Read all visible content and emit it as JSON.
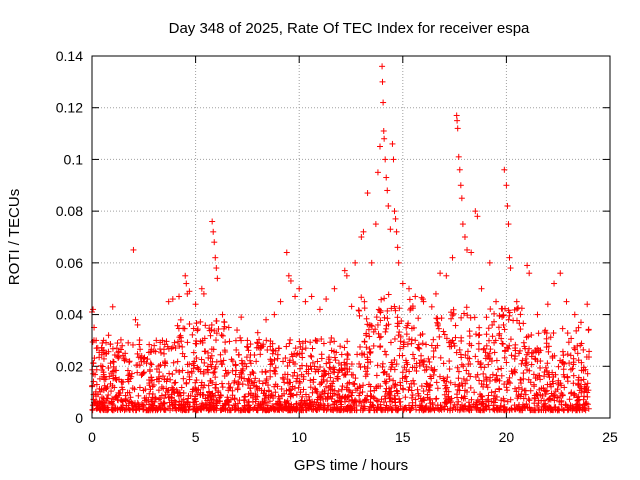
{
  "chart_data": {
    "type": "scatter",
    "title": "Day 348 of 2025, Rate Of TEC Index for receiver espa",
    "xlabel": "GPS time / hours",
    "ylabel": "ROTI / TECUs",
    "xlim": [
      0,
      25
    ],
    "ylim": [
      0,
      0.14
    ],
    "xticks": [
      0,
      5,
      10,
      15,
      20,
      25
    ],
    "xtick_labels": [
      "0",
      "5",
      "10",
      "15",
      "20",
      "25"
    ],
    "yticks": [
      0,
      0.02,
      0.04,
      0.06,
      0.08,
      0.1,
      0.12,
      0.14
    ],
    "ytick_labels": [
      "0",
      "0.02",
      "0.04",
      "0.06",
      "0.08",
      "0.1",
      "0.12",
      "0.14"
    ],
    "grid": true,
    "marker": "+",
    "color": "#ff0000",
    "series": [
      {
        "name": "ROTI",
        "points": [
          [
            0.0,
            0.041
          ],
          [
            0.05,
            0.042
          ],
          [
            0.1,
            0.035
          ],
          [
            0.2,
            0.03
          ],
          [
            0.5,
            0.029
          ],
          [
            0.8,
            0.032
          ],
          [
            1.0,
            0.043
          ],
          [
            1.2,
            0.027
          ],
          [
            1.6,
            0.025
          ],
          [
            2.0,
            0.065
          ],
          [
            2.1,
            0.038
          ],
          [
            2.2,
            0.036
          ],
          [
            2.4,
            0.024
          ],
          [
            3.0,
            0.028
          ],
          [
            3.4,
            0.03
          ],
          [
            3.7,
            0.045
          ],
          [
            3.9,
            0.046
          ],
          [
            4.2,
            0.047
          ],
          [
            4.5,
            0.055
          ],
          [
            4.55,
            0.052
          ],
          [
            4.6,
            0.048
          ],
          [
            4.7,
            0.049
          ],
          [
            5.0,
            0.044
          ],
          [
            5.3,
            0.05
          ],
          [
            5.4,
            0.048
          ],
          [
            5.8,
            0.076
          ],
          [
            5.85,
            0.072
          ],
          [
            5.9,
            0.068
          ],
          [
            5.95,
            0.062
          ],
          [
            6.0,
            0.058
          ],
          [
            6.05,
            0.054
          ],
          [
            6.3,
            0.04
          ],
          [
            6.6,
            0.035
          ],
          [
            7.0,
            0.034
          ],
          [
            7.2,
            0.039
          ],
          [
            7.5,
            0.03
          ],
          [
            8.0,
            0.033
          ],
          [
            8.4,
            0.038
          ],
          [
            8.8,
            0.04
          ],
          [
            9.1,
            0.045
          ],
          [
            9.4,
            0.064
          ],
          [
            9.5,
            0.055
          ],
          [
            9.6,
            0.053
          ],
          [
            9.8,
            0.047
          ],
          [
            10.0,
            0.05
          ],
          [
            10.3,
            0.045
          ],
          [
            10.6,
            0.047
          ],
          [
            11.0,
            0.042
          ],
          [
            11.3,
            0.046
          ],
          [
            11.7,
            0.05
          ],
          [
            12.2,
            0.057
          ],
          [
            12.3,
            0.055
          ],
          [
            12.7,
            0.06
          ],
          [
            13.0,
            0.07
          ],
          [
            13.1,
            0.072
          ],
          [
            13.3,
            0.087
          ],
          [
            13.5,
            0.06
          ],
          [
            13.7,
            0.075
          ],
          [
            13.8,
            0.095
          ],
          [
            13.9,
            0.105
          ],
          [
            14.0,
            0.136
          ],
          [
            14.02,
            0.13
          ],
          [
            14.05,
            0.122
          ],
          [
            14.08,
            0.111
          ],
          [
            14.1,
            0.108
          ],
          [
            14.15,
            0.1
          ],
          [
            14.2,
            0.093
          ],
          [
            14.25,
            0.088
          ],
          [
            14.3,
            0.082
          ],
          [
            14.4,
            0.073
          ],
          [
            14.5,
            0.106
          ],
          [
            14.55,
            0.1
          ],
          [
            14.6,
            0.08
          ],
          [
            14.65,
            0.077
          ],
          [
            14.7,
            0.072
          ],
          [
            14.75,
            0.066
          ],
          [
            14.8,
            0.06
          ],
          [
            15.0,
            0.052
          ],
          [
            15.3,
            0.05
          ],
          [
            15.6,
            0.047
          ],
          [
            16.0,
            0.045
          ],
          [
            16.4,
            0.043
          ],
          [
            16.6,
            0.048
          ],
          [
            16.8,
            0.056
          ],
          [
            17.1,
            0.055
          ],
          [
            17.4,
            0.062
          ],
          [
            17.6,
            0.117
          ],
          [
            17.62,
            0.115
          ],
          [
            17.65,
            0.112
          ],
          [
            17.7,
            0.101
          ],
          [
            17.75,
            0.096
          ],
          [
            17.8,
            0.09
          ],
          [
            17.85,
            0.085
          ],
          [
            17.9,
            0.075
          ],
          [
            18.0,
            0.07
          ],
          [
            18.1,
            0.065
          ],
          [
            18.3,
            0.064
          ],
          [
            18.5,
            0.08
          ],
          [
            18.6,
            0.078
          ],
          [
            18.8,
            0.05
          ],
          [
            19.2,
            0.06
          ],
          [
            19.5,
            0.045
          ],
          [
            19.9,
            0.096
          ],
          [
            20.0,
            0.09
          ],
          [
            20.05,
            0.082
          ],
          [
            20.1,
            0.075
          ],
          [
            20.15,
            0.062
          ],
          [
            20.2,
            0.058
          ],
          [
            20.5,
            0.045
          ],
          [
            21.0,
            0.059
          ],
          [
            21.1,
            0.056
          ],
          [
            21.5,
            0.04
          ],
          [
            22.0,
            0.044
          ],
          [
            22.3,
            0.052
          ],
          [
            22.6,
            0.056
          ],
          [
            22.9,
            0.045
          ],
          [
            23.3,
            0.04
          ],
          [
            23.6,
            0.037
          ],
          [
            23.9,
            0.044
          ]
        ]
      }
    ]
  }
}
